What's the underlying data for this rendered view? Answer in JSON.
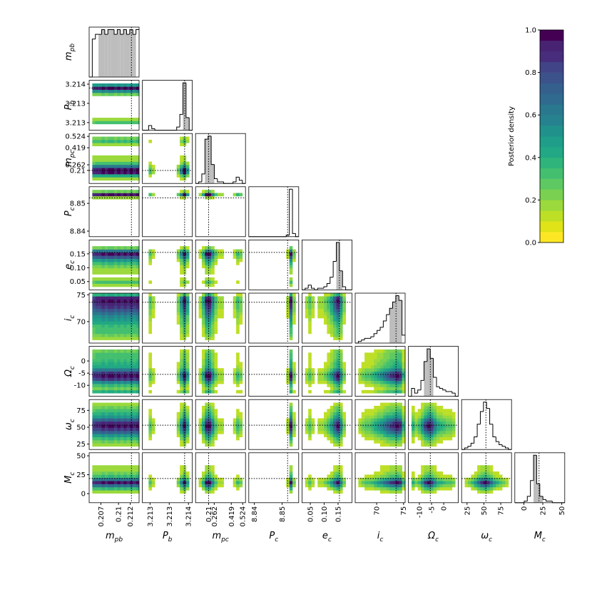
{
  "chart_data": {
    "type": "corner",
    "colormap": [
      "#fde725",
      "#dfe318",
      "#bddf26",
      "#9bd93c",
      "#7ad151",
      "#5ec962",
      "#44bf70",
      "#2fb47c",
      "#22a884",
      "#1f9e89",
      "#21918c",
      "#26828e",
      "#2a788e",
      "#306a8e",
      "#355f8d",
      "#3b528b",
      "#414487",
      "#472d7b",
      "#482374",
      "#440154"
    ],
    "colorbar": {
      "label": "Posterior density",
      "ylim": [
        0,
        1
      ],
      "yticks": [
        {
          "value": 0,
          "label": "0.0"
        },
        0.2,
        0.4,
        0.6,
        0.8,
        {
          "value": 1,
          "label": "1.0"
        }
      ]
    },
    "params": [
      {
        "symbol": "m",
        "sub": "pb",
        "lim": [
          0.205,
          0.2135
        ],
        "ticks": [
          0.207,
          0.21,
          0.212
        ],
        "truth": 0.2122,
        "interval": [
          0.2065,
          0.2128
        ],
        "hist": [
          0,
          8,
          9,
          9,
          10,
          9,
          10,
          10,
          9,
          10,
          9,
          10,
          9,
          10,
          9,
          10
        ]
      },
      {
        "symbol": "P",
        "sub": "b",
        "lim": [
          3.2128,
          3.2141
        ],
        "ticks": [
          3.213,
          {
            "value": 3.2135,
            "label": "3.213"
          },
          3.214
        ],
        "truth": 3.2139,
        "interval": [
          3.21385,
          3.214
        ],
        "hist": [
          0,
          0,
          3,
          1,
          0,
          0,
          0,
          0,
          0,
          0,
          0,
          2,
          10,
          30,
          8,
          0
        ]
      },
      {
        "symbol": "m",
        "sub": "pc",
        "lim": [
          0.09,
          0.55
        ],
        "ticks": [
          0.21,
          0.262,
          0.419,
          0.524
        ],
        "truth": 0.21,
        "interval": [
          0.19,
          0.25
        ],
        "hist": [
          0,
          1,
          6,
          28,
          30,
          12,
          3,
          1,
          1,
          0,
          0,
          0,
          1,
          4,
          2,
          0
        ]
      },
      {
        "symbol": "P",
        "sub": "c",
        "lim": [
          8.838,
          8.856
        ],
        "ticks": [
          8.84,
          8.85
        ],
        "truth": 8.852,
        "interval": [
          8.851,
          8.853
        ],
        "hist": [
          0,
          0,
          0,
          0,
          0,
          0,
          0,
          0,
          0,
          0,
          0,
          0,
          1,
          30,
          2,
          0
        ]
      },
      {
        "symbol": "e",
        "sub": "c",
        "lim": [
          0.02,
          0.2
        ],
        "ticks": [
          0.05,
          {
            "value": 0.1,
            "label": "0.10"
          },
          0.15
        ],
        "truth": 0.155,
        "interval": [
          0.145,
          0.165
        ],
        "hist": [
          0,
          1,
          3,
          1,
          0,
          1,
          1,
          2,
          4,
          8,
          18,
          30,
          12,
          2,
          0,
          0
        ]
      },
      {
        "symbol": "i",
        "sub": "c",
        "lim": [
          66,
          75.3
        ],
        "ticks": [
          70,
          75
        ],
        "truth": 73.6,
        "interval": [
          72.5,
          75
        ],
        "hist": [
          0,
          1,
          2,
          3,
          3,
          4,
          6,
          8,
          10,
          14,
          18,
          22,
          26,
          30,
          27,
          5
        ]
      },
      {
        "symbol": "Ω",
        "sub": "c",
        "lim": [
          -14.5,
          6
        ],
        "ticks": [
          -10,
          -5,
          0
        ],
        "truth": -5.5,
        "interval": [
          -8,
          -4
        ],
        "hist": [
          0,
          5,
          2,
          4,
          10,
          22,
          30,
          24,
          12,
          6,
          5,
          4,
          3,
          3,
          2,
          0
        ]
      },
      {
        "symbol": "ω",
        "sub": "c",
        "lim": [
          17,
          91
        ],
        "ticks": [
          25,
          50,
          75
        ],
        "truth": 53,
        "hist": [
          0,
          1,
          2,
          4,
          8,
          16,
          24,
          30,
          26,
          16,
          8,
          5,
          3,
          2,
          1,
          0
        ]
      },
      {
        "symbol": "M",
        "sub": "c",
        "lim": [
          -12,
          54
        ],
        "ticks": [
          0,
          25,
          50
        ],
        "truth": 20,
        "interval": [
          14,
          26
        ],
        "hist": [
          0,
          0,
          0,
          1,
          4,
          14,
          30,
          12,
          4,
          2,
          1,
          1,
          0,
          0,
          0,
          0
        ]
      }
    ]
  }
}
